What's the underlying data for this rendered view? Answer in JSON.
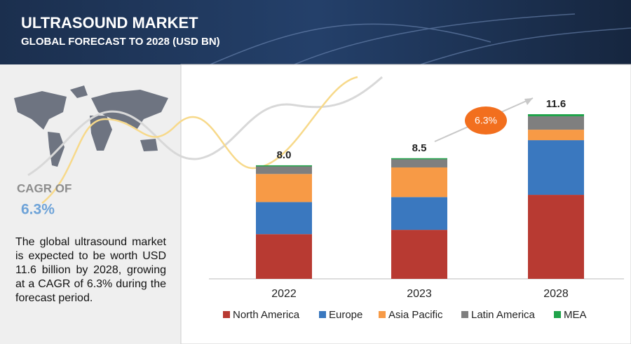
{
  "header": {
    "title": "ULTRASOUND MARKET",
    "subtitle": "GLOBAL FORECAST TO 2028 (USD BN)"
  },
  "sidebar": {
    "cagr_label": "CAGR OF",
    "cagr_value": "6.3%",
    "text": "The global ultrasound market is expected to be worth USD 11.6 billion by 2028, growing at a CAGR of 6.3% during the forecast period."
  },
  "chart_data": {
    "type": "stacked_bar",
    "categories": [
      "2022",
      "2023",
      "2028"
    ],
    "series": [
      {
        "name": "North America",
        "color": "#b83a32",
        "values": [
          3.15,
          3.45,
          5.92
        ]
      },
      {
        "name": "Europe",
        "color": "#3a78bf",
        "values": [
          2.26,
          2.31,
          3.85
        ]
      },
      {
        "name": "Asia Pacific",
        "color": "#f79a46",
        "values": [
          1.98,
          2.09,
          0.74
        ]
      },
      {
        "name": "Latin America",
        "color": "#7f7f7f",
        "values": [
          0.53,
          0.57,
          0.94
        ]
      },
      {
        "name": "MEA",
        "color": "#1fa34a",
        "values": [
          0.08,
          0.08,
          0.15
        ]
      }
    ],
    "totals": {
      "values": [
        8.0,
        8.5,
        11.6
      ],
      "value_labels": [
        "8.0",
        "8.5",
        "11.6"
      ]
    },
    "annotation": "6.3%",
    "legend": "bottom"
  }
}
